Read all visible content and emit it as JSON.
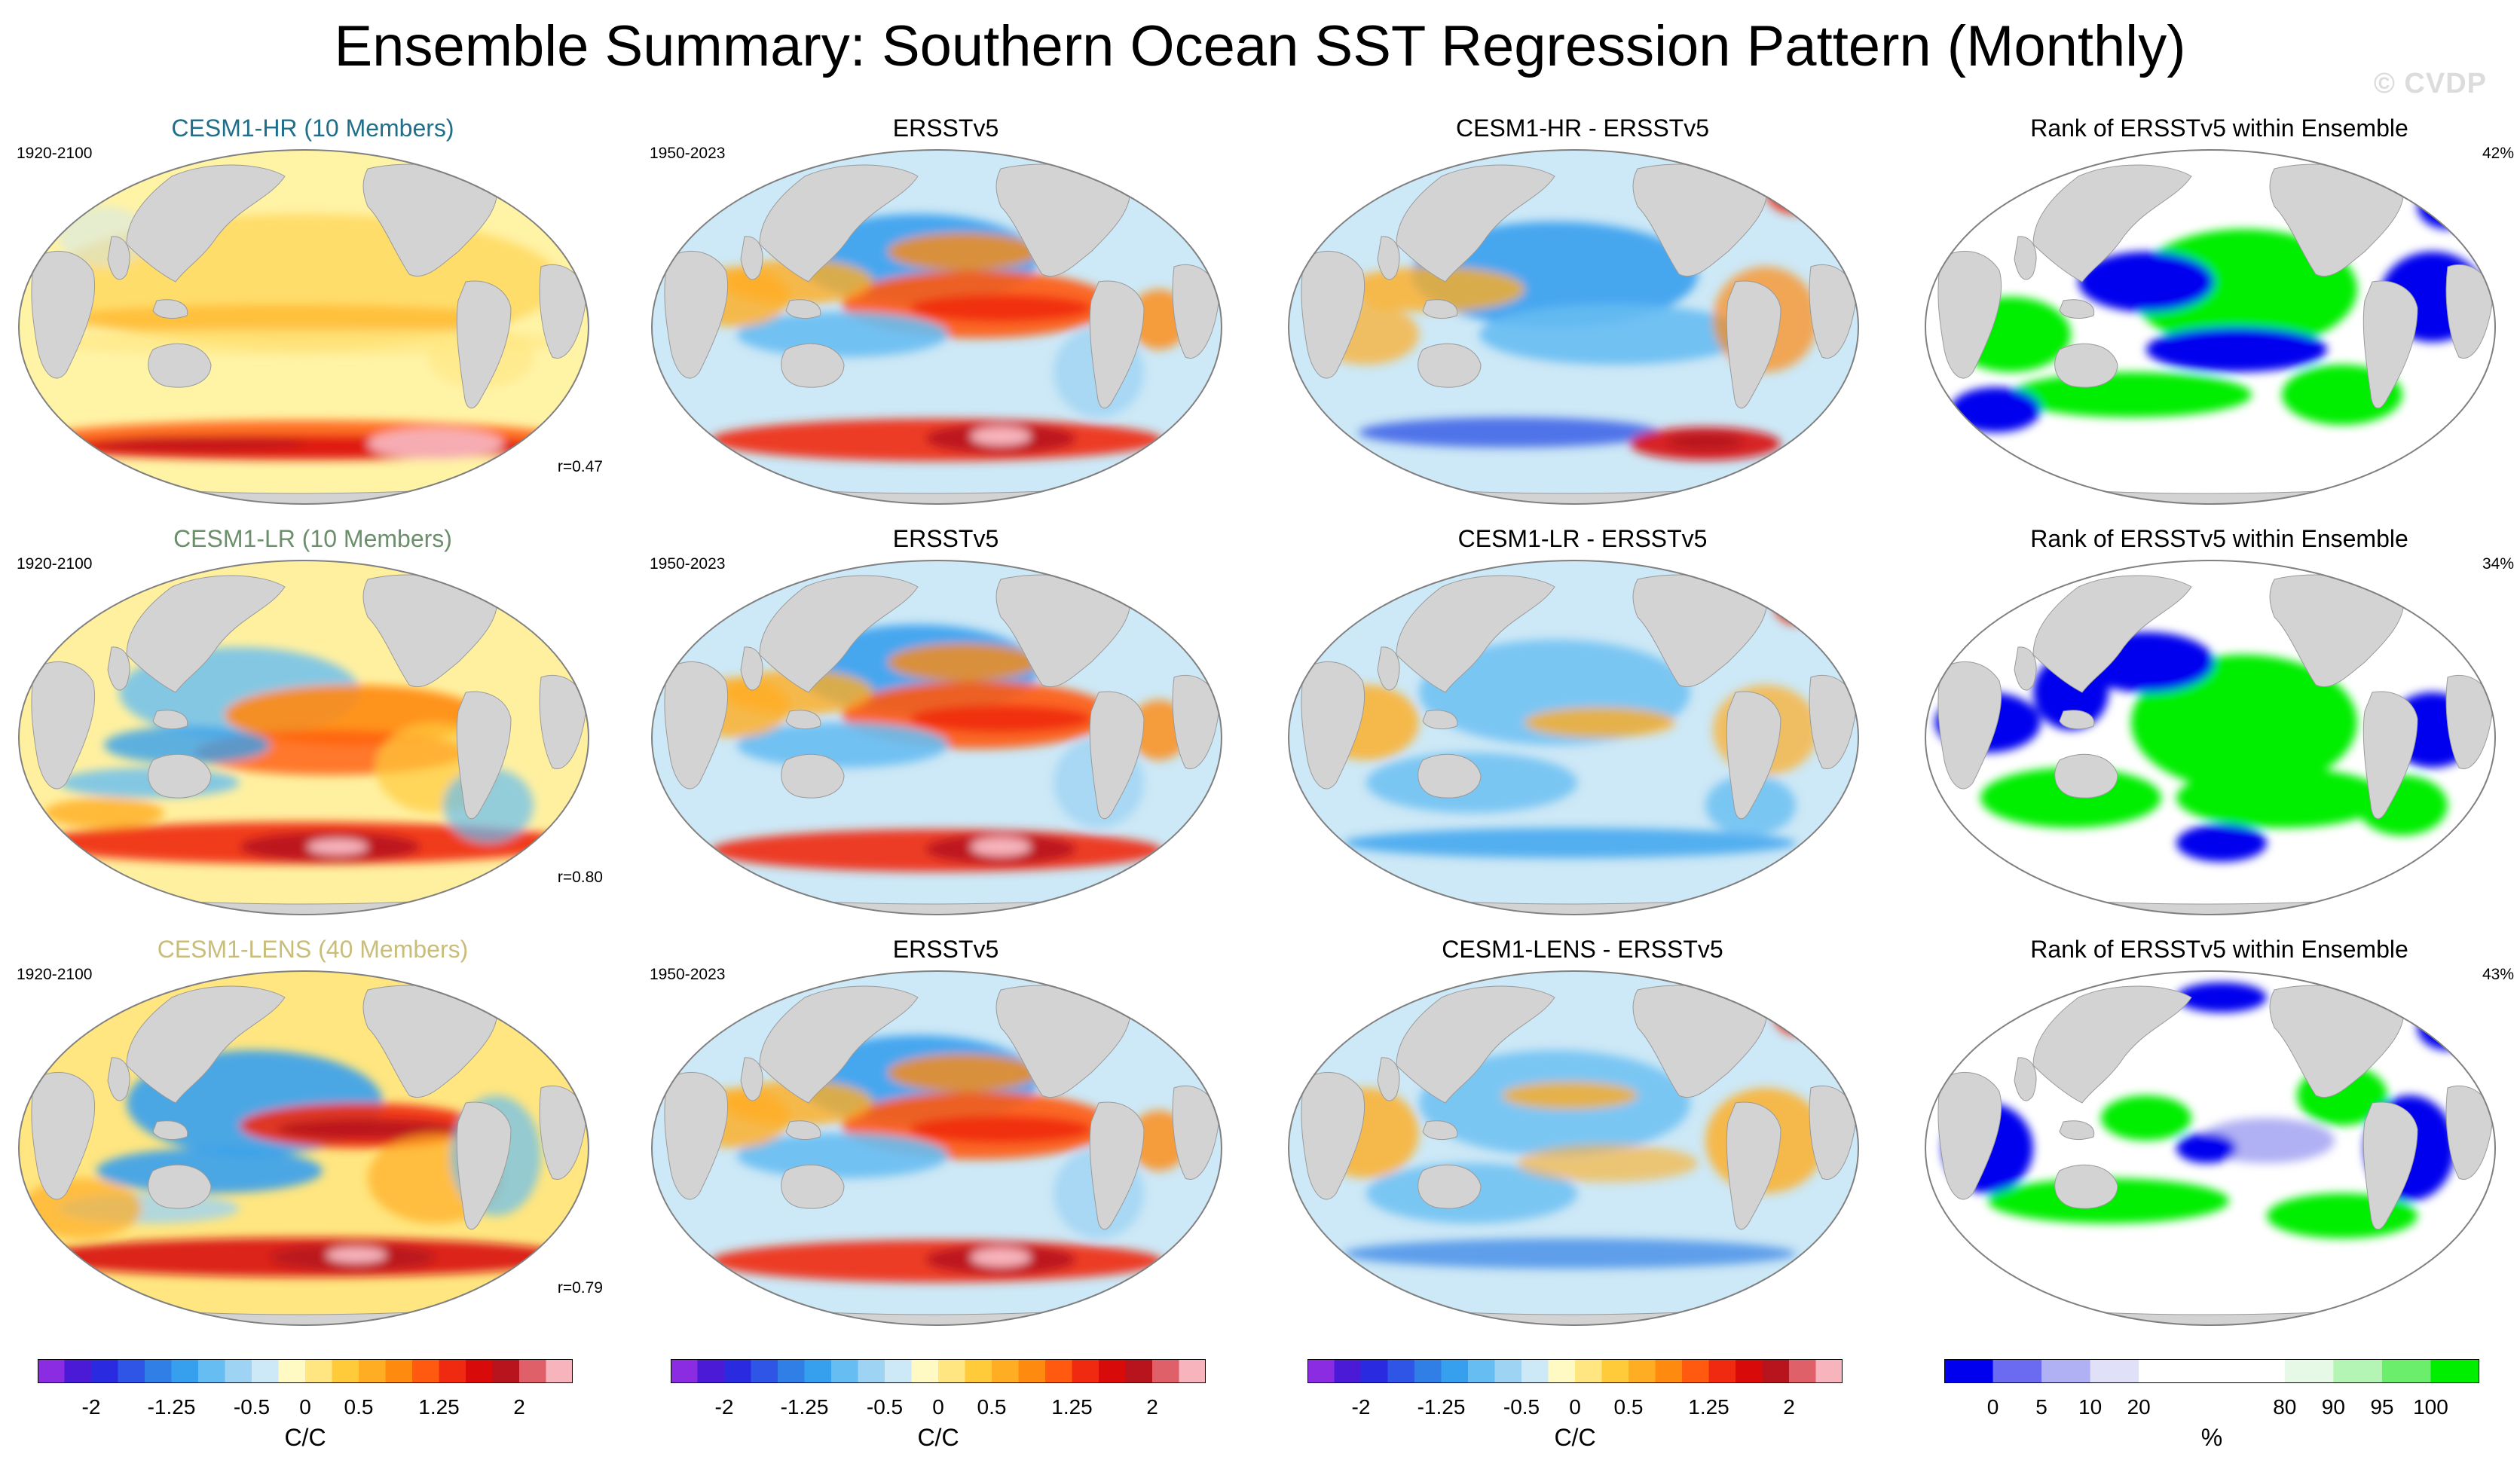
{
  "title": "Ensemble Summary: Southern Ocean SST Regression Pattern (Monthly)",
  "watermark": "© CVDP",
  "rows": [
    {
      "model": {
        "title": "CESM1-HR (10 Members)",
        "title_color": "#1f6f8b",
        "period": "1920-2100",
        "corr": "r=0.47",
        "pattern": "hr"
      },
      "obs": {
        "title": "ERSSTv5",
        "period": "1950-2023",
        "pattern": "obs"
      },
      "diff": {
        "title": "CESM1-HR - ERSSTv5",
        "pattern": "diff_hr"
      },
      "rank": {
        "title": "Rank of ERSSTv5 within Ensemble",
        "pct": "42%",
        "pattern": "rank1"
      }
    },
    {
      "model": {
        "title": "CESM1-LR (10 Members)",
        "title_color": "#6b8e6b",
        "period": "1920-2100",
        "corr": "r=0.80",
        "pattern": "lr"
      },
      "obs": {
        "title": "ERSSTv5",
        "period": "1950-2023",
        "pattern": "obs"
      },
      "diff": {
        "title": "CESM1-LR - ERSSTv5",
        "pattern": "diff_lr"
      },
      "rank": {
        "title": "Rank of ERSSTv5 within Ensemble",
        "pct": "34%",
        "pattern": "rank2"
      }
    },
    {
      "model": {
        "title": "CESM1-LENS (40 Members)",
        "title_color": "#c9bd7a",
        "period": "1920-2100",
        "corr": "r=0.79",
        "pattern": "lens"
      },
      "obs": {
        "title": "ERSSTv5",
        "period": "1950-2023",
        "pattern": "obs"
      },
      "diff": {
        "title": "CESM1-LENS - ERSSTv5",
        "pattern": "diff_lens"
      },
      "rank": {
        "title": "Rank of ERSSTv5 within Ensemble",
        "pct": "43%",
        "pattern": "rank3"
      }
    }
  ],
  "sst_colorbar": {
    "units": "C/C",
    "range": [
      -2,
      2
    ],
    "tick_labels": [
      "-2",
      "-1.25",
      "-0.5",
      "0",
      "0.5",
      "1.25",
      "2"
    ],
    "tick_values": [
      -2,
      -1.25,
      -0.5,
      0,
      0.5,
      1.25,
      2
    ],
    "colors": [
      "#8b2be2",
      "#4b1ad6",
      "#2a2ae0",
      "#2f55e6",
      "#2f7fe6",
      "#36a0ee",
      "#66bdf2",
      "#9fd3f4",
      "#cde8f6",
      "#fff9c4",
      "#ffe680",
      "#ffcb3a",
      "#ffad22",
      "#ff8a10",
      "#ff5a10",
      "#f02a10",
      "#d80a0a",
      "#b8141e",
      "#e0606a",
      "#f8b4bc"
    ]
  },
  "rank_colorbar": {
    "units": "%",
    "tick_labels": [
      "0",
      "5",
      "10",
      "20",
      "80",
      "90",
      "95",
      "100"
    ],
    "colors": [
      "#0000ee",
      "#6b6bf2",
      "#b0b0f4",
      "#e0e0f8",
      "#ffffff",
      "#ffffff",
      "#ffffff",
      "#e6f8e6",
      "#b4f4b4",
      "#6bee6b",
      "#00ee00"
    ]
  },
  "map_style": {
    "land": "#d3d3d3",
    "ocean_frame": "#808080"
  }
}
